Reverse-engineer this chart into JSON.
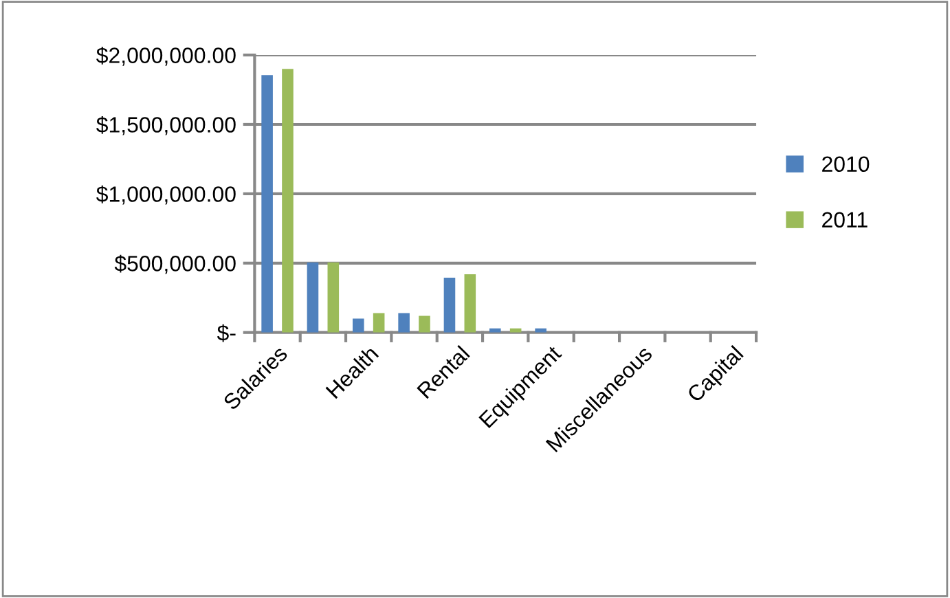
{
  "chart_data": {
    "type": "bar",
    "categories": [
      "Salaries",
      null,
      "Health",
      null,
      "Rental",
      null,
      "Equipment",
      null,
      "Miscellaneous",
      null,
      "Capital"
    ],
    "series": [
      {
        "name": "2010",
        "color": "#4f81bd",
        "values": [
          1855000,
          505000,
          100000,
          140000,
          395000,
          30000,
          30000,
          0,
          0,
          0,
          0
        ]
      },
      {
        "name": "2011",
        "color": "#9bbb59",
        "values": [
          1900000,
          505000,
          140000,
          120000,
          420000,
          30000,
          0,
          0,
          0,
          0,
          0
        ]
      }
    ],
    "ylim": [
      0,
      2000000
    ],
    "yticks": [
      {
        "value": 0,
        "label": "$-"
      },
      {
        "value": 500000,
        "label": "$500,000.00"
      },
      {
        "value": 1000000,
        "label": "$1,000,000.00"
      },
      {
        "value": 1500000,
        "label": "$1,500,000.00"
      },
      {
        "value": 2000000,
        "label": "$2,000,000.00"
      }
    ],
    "grid": "y",
    "legend": "right"
  }
}
